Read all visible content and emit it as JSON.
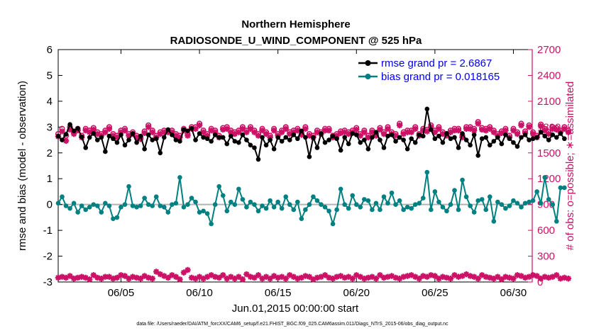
{
  "chart_data": {
    "type": "line",
    "title": "Northern Hemisphere",
    "subtitle": "RADIOSONDE_U_WIND_COMPONENT @ 525 hPa",
    "xlabel": "Jun.01,2015 00:00:00 start",
    "ylabel": "rmse and bias (model - observation)",
    "ylabel_right": "# of obs: o=possible; ∗=assimilated",
    "xlim": [
      1,
      31.2
    ],
    "ylim": [
      -3,
      6
    ],
    "ylim_right": [
      0,
      2700
    ],
    "x_ticks": [
      5,
      10,
      15,
      20,
      25,
      30
    ],
    "x_tick_labels": [
      "06/05",
      "06/10",
      "06/15",
      "06/20",
      "06/25",
      "06/30"
    ],
    "y_ticks": [
      -3,
      -2,
      -1,
      0,
      1,
      2,
      3,
      4,
      5,
      6
    ],
    "y_tick_labels": [
      "-3",
      "-2",
      "-1",
      "0",
      "1",
      "2",
      "3",
      "4",
      "5",
      "6"
    ],
    "y_ticks_right": [
      0,
      300,
      600,
      900,
      1200,
      1500,
      1800,
      2100,
      2400,
      2700
    ],
    "y_tick_labels_right": [
      "0",
      "300",
      "600",
      "900",
      "1200",
      "1500",
      "1800",
      "2100",
      "2400",
      "2700"
    ],
    "zero_line": 0,
    "footer": "data file: /Users/raeder/DAI/ATM_forcXX/CAM6_setup/f.e21.FHIST_BGC.f09_025.CAM6assim.011/Diags_NTrS_2015-06/obs_diag_output.nc",
    "legend": [
      {
        "label": "rmse grand pr = 2.6867",
        "color": "#000000"
      },
      {
        "label": "bias grand pr = 0.018165",
        "color": "#008080"
      }
    ],
    "series": [
      {
        "name": "rmse",
        "axis": "left",
        "color": "#000000",
        "values": [
          2.65,
          2.5,
          2.72,
          3.1,
          2.85,
          2.95,
          2.62,
          2.2,
          2.6,
          2.75,
          2.5,
          2.6,
          2.05,
          2.65,
          2.55,
          2.4,
          2.7,
          2.3,
          2.5,
          2.75,
          2.4,
          2.65,
          2.15,
          2.7,
          2.5,
          2.55,
          2.0,
          2.6,
          2.9,
          2.7,
          2.5,
          2.45,
          2.9,
          2.85,
          2.95,
          2.5,
          2.75,
          2.6,
          2.55,
          2.45,
          2.7,
          2.6,
          2.6,
          2.35,
          2.65,
          2.45,
          2.4,
          2.7,
          2.5,
          2.3,
          2.2,
          1.75,
          2.6,
          2.3,
          2.5,
          2.15,
          2.6,
          2.45,
          2.6,
          2.5,
          2.7,
          2.55,
          2.85,
          2.6,
          1.85,
          2.6,
          2.2,
          2.75,
          2.4,
          2.5,
          2.65,
          2.55,
          2.1,
          2.6,
          2.35,
          2.75,
          2.7,
          2.4,
          2.5,
          2.15,
          2.6,
          2.8,
          2.5,
          2.2,
          2.65,
          2.7,
          2.45,
          2.6,
          2.5,
          2.15,
          2.55,
          2.4,
          2.7,
          2.65,
          3.7,
          2.9,
          2.55,
          2.65,
          2.4,
          2.75,
          2.55,
          2.6,
          2.2,
          2.75,
          2.5,
          2.3,
          2.7,
          1.9,
          2.55,
          2.6,
          2.3,
          2.45,
          2.6,
          2.35,
          2.7,
          2.55,
          2.4,
          2.25,
          2.6,
          2.7,
          2.5,
          2.55,
          2.6,
          2.8,
          2.65,
          2.5,
          2.7,
          2.6,
          2.75,
          2.55
        ]
      },
      {
        "name": "bias",
        "axis": "left",
        "color": "#008080",
        "values": [
          0.05,
          0.3,
          -0.05,
          -0.15,
          0.05,
          -0.3,
          -0.05,
          -0.2,
          -0.1,
          0.0,
          -0.05,
          -0.3,
          0.05,
          -0.05,
          -0.55,
          -0.5,
          -0.1,
          0.0,
          0.7,
          -0.05,
          -0.1,
          -0.05,
          0.25,
          0.0,
          -0.05,
          0.3,
          -0.05,
          -0.1,
          -0.3,
          0.0,
          0.05,
          1.05,
          -0.1,
          0.0,
          0.25,
          0.1,
          -0.3,
          -0.25,
          -0.35,
          -0.75,
          0.0,
          0.7,
          0.35,
          -0.25,
          0.1,
          0.0,
          0.6,
          0.2,
          -0.1,
          0.1,
          0.0,
          -0.25,
          -0.05,
          -0.15,
          0.15,
          -0.1,
          0.1,
          -0.15,
          0.3,
          0.0,
          -0.2,
          0.1,
          -0.55,
          -0.2,
          0.0,
          0.3,
          0.15,
          0.0,
          -0.1,
          -0.25,
          -0.75,
          -0.2,
          0.6,
          0.0,
          -0.15,
          0.35,
          0.0,
          -0.1,
          0.2,
          0.15,
          -0.2,
          0.05,
          -0.2,
          0.3,
          0.05,
          0.45,
          0.0,
          0.15,
          -0.2,
          -0.1,
          -0.15,
          0.0,
          0.05,
          0.25,
          1.25,
          -0.2,
          0.5,
          0.1,
          -0.1,
          -0.25,
          0.0,
          0.55,
          -0.2,
          0.95,
          0.3,
          -0.05,
          -0.3,
          0.15,
          0.2,
          -0.2,
          0.3,
          -0.65,
          0.1,
          0.0,
          -0.15,
          -0.05,
          0.15,
          0.05,
          -0.1,
          0.05,
          0.1,
          0.15,
          0.5,
          0.05,
          1.05,
          0.2,
          0.0,
          -0.65,
          0.65,
          0.65
        ]
      },
      {
        "name": "obs possible",
        "axis": "right",
        "color": "#cc1166",
        "marker": "o",
        "values": [
          1720,
          1780,
          1700,
          1800,
          1740,
          1780,
          1700,
          1780,
          1760,
          1790,
          1740,
          1720,
          1760,
          1800,
          1720,
          1700,
          1760,
          1780,
          1720,
          1740,
          1700,
          1680,
          1750,
          1820,
          1760,
          1700,
          1740,
          1760,
          1760,
          1760,
          1720,
          1700,
          1780,
          1720,
          1800,
          1800,
          1840,
          1760,
          1720,
          1780,
          1760,
          1700,
          1790,
          1800,
          1760,
          1740,
          1760,
          1800,
          1760,
          1800,
          1760,
          1720,
          1780,
          1740,
          1700,
          1780,
          1720,
          1760,
          1800,
          1740,
          1760,
          1780,
          1730,
          1800,
          1720,
          1700,
          1760,
          1740,
          1780,
          1780,
          1700,
          1720,
          1750,
          1760,
          1740,
          1760,
          1790,
          1720,
          1760,
          1700,
          1760,
          1720,
          1790,
          1740,
          1800,
          1740,
          1720,
          1840,
          1740,
          1760,
          1760,
          1800,
          1720,
          1780,
          1770,
          1820,
          1760,
          1800,
          1740,
          1720,
          1760,
          1780,
          1780,
          1700,
          1800,
          1800,
          1780,
          1860,
          1790,
          1780,
          1800,
          1760,
          1720,
          1750,
          1780,
          1700,
          1780,
          1740,
          1840,
          1750,
          1820,
          1740,
          1700,
          1830,
          1780,
          1740,
          1800,
          1790,
          1760,
          1800,
          1760
        ]
      },
      {
        "name": "obs assimilated",
        "axis": "right",
        "color": "#cc1166",
        "marker": "*",
        "values": [
          1690,
          1750,
          1640,
          1770,
          1720,
          1760,
          1680,
          1760,
          1740,
          1770,
          1720,
          1700,
          1740,
          1780,
          1700,
          1680,
          1740,
          1760,
          1700,
          1720,
          1680,
          1660,
          1730,
          1800,
          1740,
          1680,
          1720,
          1740,
          1740,
          1740,
          1700,
          1680,
          1760,
          1700,
          1780,
          1780,
          1820,
          1740,
          1700,
          1760,
          1740,
          1680,
          1770,
          1780,
          1740,
          1720,
          1740,
          1780,
          1740,
          1780,
          1740,
          1700,
          1760,
          1720,
          1680,
          1760,
          1700,
          1740,
          1780,
          1720,
          1740,
          1760,
          1710,
          1780,
          1700,
          1680,
          1740,
          1720,
          1760,
          1760,
          1680,
          1700,
          1730,
          1740,
          1720,
          1740,
          1770,
          1700,
          1740,
          1680,
          1740,
          1700,
          1770,
          1720,
          1780,
          1720,
          1700,
          1820,
          1720,
          1740,
          1740,
          1780,
          1700,
          1760,
          1750,
          1800,
          1740,
          1780,
          1720,
          1700,
          1740,
          1760,
          1760,
          1680,
          1780,
          1780,
          1760,
          1840,
          1770,
          1760,
          1780,
          1740,
          1700,
          1730,
          1760,
          1680,
          1760,
          1720,
          1820,
          1730,
          1800,
          1720,
          1680,
          1810,
          1760,
          1720,
          1780,
          1770,
          1740,
          1780,
          1740
        ]
      },
      {
        "name": "obs count (early)",
        "axis": "right",
        "color": "#cc1166",
        "marker": "*",
        "values": [
          50,
          60,
          50,
          70,
          40,
          50,
          60,
          50,
          30,
          80,
          50,
          40,
          60,
          60,
          40,
          50,
          80,
          70,
          40,
          60,
          50,
          40,
          70,
          50,
          40,
          120,
          90,
          70,
          50,
          80,
          60,
          30,
          110,
          140,
          50,
          40,
          60,
          40,
          60,
          80,
          60,
          50,
          80,
          40,
          60,
          40,
          60,
          30,
          90,
          60,
          50,
          80,
          40,
          60,
          40,
          70,
          50,
          60,
          40,
          80,
          60,
          40,
          50,
          70,
          60,
          30,
          50,
          60,
          80,
          50,
          40,
          60,
          70,
          50,
          60,
          40,
          80,
          60,
          40,
          50,
          60,
          40,
          80,
          50,
          60,
          70,
          50,
          40,
          60,
          70,
          80,
          60,
          40,
          70,
          60,
          80,
          70,
          40,
          60,
          50,
          40,
          80,
          60,
          70,
          90,
          70,
          60,
          40,
          80,
          60,
          50,
          40,
          60,
          30,
          60,
          50,
          40,
          80,
          70,
          50,
          60,
          80,
          70,
          40,
          60,
          50,
          60,
          80,
          40,
          50,
          40
        ]
      }
    ]
  }
}
